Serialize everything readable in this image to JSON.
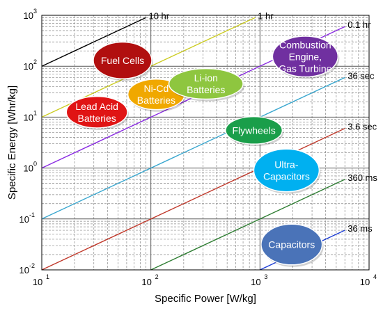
{
  "chart_data": {
    "type": "line",
    "xlabel": "Specific Power [W/kg]",
    "ylabel": "Specific Energy [Whr/kg]",
    "x_scale": "log",
    "y_scale": "log",
    "xlim": [
      10,
      10000
    ],
    "ylim": [
      0.01,
      1000
    ],
    "grid": true,
    "x_ticks": [
      {
        "base": "10",
        "exp": "1",
        "value": 10
      },
      {
        "base": "10",
        "exp": "2",
        "value": 100
      },
      {
        "base": "10",
        "exp": "3",
        "value": 1000
      },
      {
        "base": "10",
        "exp": "4",
        "value": 10000
      }
    ],
    "y_ticks": [
      {
        "base": "10",
        "exp": "-2",
        "value": 0.01
      },
      {
        "base": "10",
        "exp": "-1",
        "value": 0.1
      },
      {
        "base": "10",
        "exp": "0",
        "value": 1
      },
      {
        "base": "10",
        "exp": "1",
        "value": 10
      },
      {
        "base": "10",
        "exp": "2",
        "value": 100
      },
      {
        "base": "10",
        "exp": "3",
        "value": 1000
      }
    ],
    "time_lines": [
      {
        "label": "10 hr",
        "hours": 10,
        "color": "#000000"
      },
      {
        "label": "1 hr",
        "hours": 1,
        "color": "#cccc22"
      },
      {
        "label": "0.1 hr",
        "hours": 0.1,
        "color": "#8a2be2"
      },
      {
        "label": "36 sec",
        "hours": 0.01,
        "color": "#3aa7cf"
      },
      {
        "label": "3.6 sec",
        "hours": 0.001,
        "color": "#c0392b"
      },
      {
        "label": "360 ms",
        "hours": 0.0001,
        "color": "#2e7d32"
      },
      {
        "label": "36 ms",
        "hours": 1e-05,
        "color": "#1f3fd6"
      }
    ],
    "regions": [
      {
        "lines": [
          "Fuel Cells"
        ],
        "color": "#b10f0f",
        "cx": 55,
        "cy": 130,
        "rx": 42,
        "ry": 0.36
      },
      {
        "lines": [
          "Lead Acid",
          "Batteries"
        ],
        "color": "#e01414",
        "cx": 32,
        "cy": 12.5,
        "rx": 0.28,
        "ry": 0.31
      },
      {
        "lines": [
          "Ni-Cd",
          "Batteries"
        ],
        "color": "#f0a800",
        "cx": 112,
        "cy": 28,
        "rx": 0.26,
        "ry": 0.3
      },
      {
        "lines": [
          "Li-ion",
          "Batteries"
        ],
        "color": "#8ec63f",
        "cx": 320,
        "cy": 45,
        "rx": 0.34,
        "ry": 0.3
      },
      {
        "lines": [
          "Combustion",
          "Engine,",
          "Gas Turbine"
        ],
        "color": "#7030a0",
        "cx": 2600,
        "cy": 155,
        "rx": 0.3,
        "ry": 0.4
      },
      {
        "lines": [
          "Flywheels"
        ],
        "color": "#1a9e4a",
        "cx": 880,
        "cy": 5.5,
        "rx": 0.26,
        "ry": 0.27
      },
      {
        "lines": [
          "Ultra-",
          "Capacitors"
        ],
        "color": "#00b0f0",
        "cx": 1750,
        "cy": 0.9,
        "rx": 0.3,
        "ry": 0.42
      },
      {
        "lines": [
          "Capacitors"
        ],
        "color": "#4a73b8",
        "cx": 1950,
        "cy": 0.0315,
        "rx": 0.28,
        "ry": 0.4
      }
    ]
  }
}
